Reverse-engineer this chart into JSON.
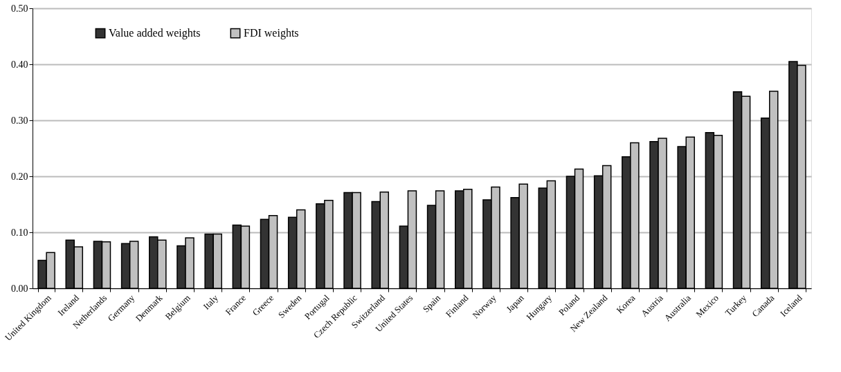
{
  "chart_data": {
    "type": "bar",
    "categories": [
      "United Kingdom",
      "Ireland",
      "Netherlands",
      "Germany",
      "Denmark",
      "Belgium",
      "Italy",
      "France",
      "Greece",
      "Sweden",
      "Portugal",
      "Czech Republic",
      "Switzerland",
      "United States",
      "Spain",
      "Finland",
      "Norway",
      "Japan",
      "Hungary",
      "Poland",
      "New Zealand",
      "Korea",
      "Austria",
      "Australia",
      "Mexico",
      "Turkey",
      "Canada",
      "Iceland"
    ],
    "series": [
      {
        "name": "Value added weights",
        "color": "#333333",
        "values": [
          0.05,
          0.086,
          0.084,
          0.08,
          0.092,
          0.076,
          0.097,
          0.113,
          0.123,
          0.127,
          0.151,
          0.171,
          0.155,
          0.111,
          0.148,
          0.174,
          0.158,
          0.162,
          0.179,
          0.2,
          0.201,
          0.235,
          0.262,
          0.253,
          0.278,
          0.351,
          0.304,
          0.405
        ]
      },
      {
        "name": "FDI weights",
        "color": "#c0c0c0",
        "values": [
          0.064,
          0.074,
          0.083,
          0.084,
          0.086,
          0.09,
          0.097,
          0.111,
          0.13,
          0.14,
          0.157,
          0.171,
          0.172,
          0.174,
          0.174,
          0.177,
          0.181,
          0.186,
          0.192,
          0.213,
          0.219,
          0.26,
          0.268,
          0.27,
          0.273,
          0.343,
          0.352,
          0.398
        ]
      }
    ],
    "ylim": [
      0,
      0.5
    ],
    "yticks": [
      {
        "value": 0,
        "label": "0.00"
      },
      {
        "value": 0.1,
        "label": "0.10"
      },
      {
        "value": 0.2,
        "label": "0.20"
      },
      {
        "value": 0.3,
        "label": "0.30"
      },
      {
        "value": 0.4,
        "label": "0.40"
      },
      {
        "value": 0.5,
        "label": "0.50"
      }
    ],
    "grid": "y",
    "legend": "top left"
  }
}
